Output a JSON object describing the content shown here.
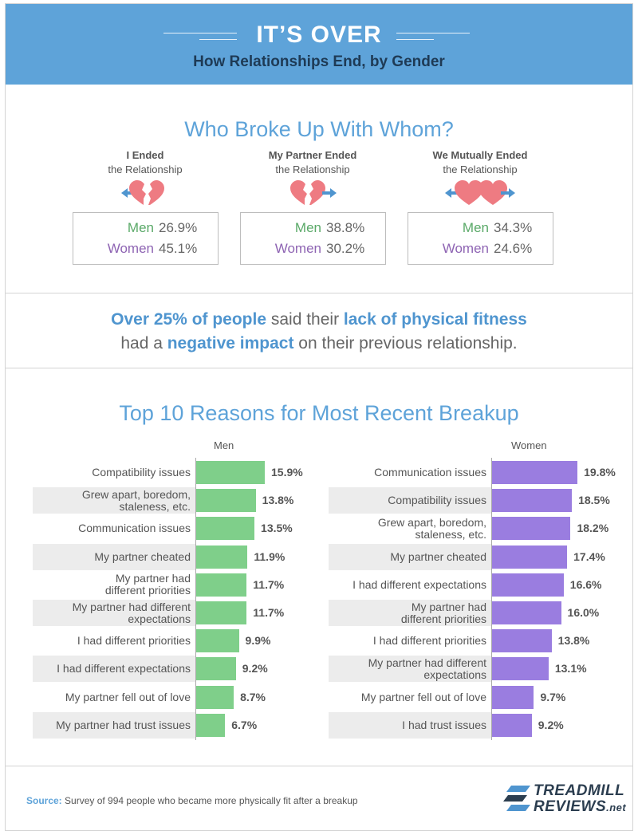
{
  "header": {
    "title": "IT’S OVER",
    "subtitle": "How Relationships End, by Gender"
  },
  "who": {
    "title": "Who Broke Up With Whom?",
    "groups": [
      {
        "head_bold": "I Ended",
        "head_rest": "the Relationship",
        "icon": "heart-broken-left-arrow-icon",
        "men_label": "Men",
        "men_value": "26.9%",
        "women_label": "Women",
        "women_value": "45.1%"
      },
      {
        "head_bold": "My Partner Ended",
        "head_rest": "the Relationship",
        "icon": "heart-broken-right-arrow-icon",
        "men_label": "Men",
        "men_value": "38.8%",
        "women_label": "Women",
        "women_value": "30.2%"
      },
      {
        "head_bold": "We Mutually Ended",
        "head_rest": "the Relationship",
        "icon": "two-hearts-apart-icon",
        "men_label": "Men",
        "men_value": "34.3%",
        "women_label": "Women",
        "women_value": "24.6%"
      }
    ]
  },
  "fitness": {
    "p1": "Over 25% of people",
    "p2": " said their ",
    "p3": "lack of physical fitness",
    "p4": "had a ",
    "p5": "negative impact",
    "p6": " on their previous relationship."
  },
  "chart_data": [
    {
      "type": "bar",
      "title": "Top 10 Reasons for Most Recent Breakup",
      "series_name": "Men",
      "color": "#7fcf8a",
      "categories": [
        "Compatibility issues",
        "Grew apart, boredom, staleness, etc.",
        "Communication issues",
        "My partner cheated",
        "My partner had different priorities",
        "My partner had different expectations",
        "I had different priorities",
        "I had different expectations",
        "My partner fell out of love",
        "My partner had trust issues"
      ],
      "labels": [
        [
          "Compatibility issues"
        ],
        [
          "Grew apart, boredom,",
          "staleness, etc."
        ],
        [
          "Communication issues"
        ],
        [
          "My partner cheated"
        ],
        [
          "My partner had",
          "different priorities"
        ],
        [
          "My partner had different",
          "expectations"
        ],
        [
          "I had different priorities"
        ],
        [
          "I had different expectations"
        ],
        [
          "My partner fell out of love"
        ],
        [
          "My partner had trust issues"
        ]
      ],
      "values": [
        15.9,
        13.8,
        13.5,
        11.9,
        11.7,
        11.7,
        9.9,
        9.2,
        8.7,
        6.7
      ],
      "value_labels": [
        "15.9%",
        "13.8%",
        "13.5%",
        "11.9%",
        "11.7%",
        "11.7%",
        "9.9%",
        "9.2%",
        "8.7%",
        "6.7%"
      ]
    },
    {
      "type": "bar",
      "title": "Top 10 Reasons for Most Recent Breakup",
      "series_name": "Women",
      "color": "#9a7de0",
      "categories": [
        "Communication issues",
        "Compatibility issues",
        "Grew apart, boredom, staleness, etc.",
        "My partner cheated",
        "I had different expectations",
        "My partner had different priorities",
        "I had different priorities",
        "My partner had different expectations",
        "My partner fell out of love",
        "I had trust issues"
      ],
      "labels": [
        [
          "Communication issues"
        ],
        [
          "Compatibility issues"
        ],
        [
          "Grew apart, boredom,",
          "staleness, etc."
        ],
        [
          "My partner cheated"
        ],
        [
          "I had different expectations"
        ],
        [
          "My partner had",
          "different priorities"
        ],
        [
          "I had different priorities"
        ],
        [
          "My partner had different",
          "expectations"
        ],
        [
          "My partner fell out of love"
        ],
        [
          "I had trust issues"
        ]
      ],
      "values": [
        19.8,
        18.5,
        18.2,
        17.4,
        16.6,
        16.0,
        13.8,
        13.1,
        9.7,
        9.2
      ],
      "value_labels": [
        "19.8%",
        "18.5%",
        "18.2%",
        "17.4%",
        "16.6%",
        "16.0%",
        "13.8%",
        "13.1%",
        "9.7%",
        "9.2%"
      ]
    }
  ],
  "footer": {
    "source_label": "Source:",
    "source_text": " Survey of 994 people who became more physically fit after a breakup",
    "logo_line1": "TREADMILL",
    "logo_line2": "REVIEWS",
    "logo_suffix": ".net"
  },
  "colors": {
    "header": "#5ea3d9",
    "men": "#5aa968",
    "women": "#8e64b3",
    "heart": "#ee7b82",
    "arrow": "#4f95cf"
  }
}
